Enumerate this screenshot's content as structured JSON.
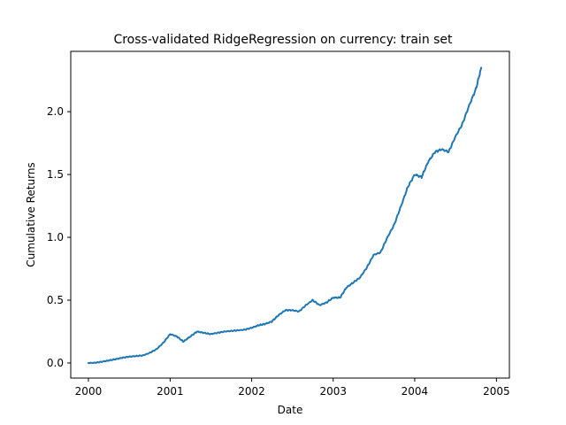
{
  "chart_data": {
    "type": "line",
    "title": "Cross-validated RidgeRegression on currency: train set",
    "xlabel": "Date",
    "ylabel": "Cumulative Returns",
    "xlim": [
      "1999-10-14",
      "2005-02-28"
    ],
    "ylim": [
      -0.12,
      2.48
    ],
    "xticks": [
      "2000",
      "2001",
      "2002",
      "2003",
      "2004",
      "2005"
    ],
    "yticks": [
      "0.0",
      "0.5",
      "1.0",
      "1.5",
      "2.0"
    ],
    "yticks_values": [
      0.0,
      0.5,
      1.0,
      1.5,
      2.0
    ],
    "grid": false,
    "legend": false,
    "series": [
      {
        "color": "#1f77b4",
        "x": [
          "2000-01-01",
          "2000-02-01",
          "2000-03-01",
          "2000-04-01",
          "2000-05-01",
          "2000-06-01",
          "2000-07-01",
          "2000-08-01",
          "2000-09-01",
          "2000-10-01",
          "2000-11-01",
          "2000-12-01",
          "2001-01-01",
          "2001-02-01",
          "2001-03-01",
          "2001-04-01",
          "2001-05-01",
          "2001-06-01",
          "2001-07-01",
          "2001-08-01",
          "2001-09-01",
          "2001-10-01",
          "2001-11-01",
          "2001-12-01",
          "2002-01-01",
          "2002-02-01",
          "2002-03-01",
          "2002-04-01",
          "2002-05-01",
          "2002-06-01",
          "2002-07-01",
          "2002-08-01",
          "2002-09-01",
          "2002-10-01",
          "2002-11-01",
          "2002-12-01",
          "2003-01-01",
          "2003-02-01",
          "2003-03-01",
          "2003-04-01",
          "2003-05-01",
          "2003-06-01",
          "2003-07-01",
          "2003-08-01",
          "2003-09-01",
          "2003-10-01",
          "2003-11-01",
          "2003-12-01",
          "2004-01-01",
          "2004-02-01",
          "2004-03-01",
          "2004-04-01",
          "2004-05-01",
          "2004-06-01",
          "2004-07-01",
          "2004-08-01",
          "2004-09-01",
          "2004-10-01",
          "2004-10-25"
        ],
        "values": [
          0.0,
          0.002,
          0.01,
          0.02,
          0.03,
          0.042,
          0.05,
          0.055,
          0.06,
          0.08,
          0.11,
          0.16,
          0.23,
          0.21,
          0.17,
          0.21,
          0.25,
          0.24,
          0.23,
          0.24,
          0.25,
          0.255,
          0.26,
          0.265,
          0.28,
          0.3,
          0.31,
          0.33,
          0.38,
          0.42,
          0.42,
          0.41,
          0.46,
          0.5,
          0.46,
          0.48,
          0.52,
          0.52,
          0.6,
          0.64,
          0.68,
          0.76,
          0.86,
          0.88,
          1.0,
          1.1,
          1.25,
          1.4,
          1.5,
          1.48,
          1.6,
          1.68,
          1.7,
          1.68,
          1.8,
          1.9,
          2.05,
          2.18,
          2.35
        ]
      }
    ]
  }
}
